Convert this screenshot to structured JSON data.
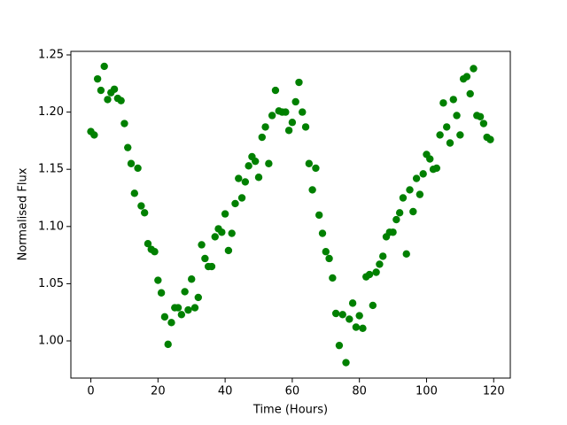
{
  "chart_data": {
    "type": "scatter",
    "xlabel": "Time (Hours)",
    "ylabel": "Normalised Flux",
    "color": "#008000",
    "x": [
      0,
      1,
      2,
      3,
      4,
      5,
      6,
      7,
      8,
      9,
      10,
      11,
      12,
      13,
      14,
      15,
      16,
      17,
      18,
      19,
      20,
      21,
      22,
      23,
      24,
      25,
      26,
      27,
      28,
      29,
      30,
      31,
      32,
      33,
      34,
      35,
      36,
      37,
      38,
      39,
      40,
      41,
      42,
      43,
      44,
      45,
      46,
      47,
      48,
      49,
      50,
      51,
      52,
      53,
      54,
      55,
      56,
      57,
      58,
      59,
      60,
      61,
      62,
      63,
      64,
      65,
      66,
      67,
      68,
      69,
      70,
      71,
      72,
      73,
      74,
      75,
      76,
      77,
      78,
      79,
      80,
      81,
      82,
      83,
      84,
      85,
      86,
      87,
      88,
      89,
      90,
      91,
      92,
      93,
      94,
      95,
      96,
      97,
      98,
      99,
      100,
      101,
      102,
      103,
      104,
      105,
      106,
      107,
      108,
      109,
      110,
      111,
      112,
      113,
      114,
      115,
      116,
      117,
      118,
      119
    ],
    "values": [
      1.183,
      1.18,
      1.229,
      1.219,
      1.24,
      1.211,
      1.217,
      1.22,
      1.212,
      1.21,
      1.19,
      1.169,
      1.155,
      1.129,
      1.151,
      1.118,
      1.112,
      1.085,
      1.08,
      1.078,
      1.053,
      1.042,
      1.021,
      0.997,
      1.016,
      1.029,
      1.029,
      1.023,
      1.043,
      1.027,
      1.054,
      1.029,
      1.038,
      1.084,
      1.072,
      1.065,
      1.065,
      1.091,
      1.098,
      1.095,
      1.111,
      1.079,
      1.094,
      1.12,
      1.142,
      1.125,
      1.139,
      1.153,
      1.161,
      1.157,
      1.143,
      1.178,
      1.187,
      1.155,
      1.197,
      1.219,
      1.201,
      1.2,
      1.2,
      1.184,
      1.191,
      1.209,
      1.226,
      1.2,
      1.187,
      1.155,
      1.132,
      1.151,
      1.11,
      1.094,
      1.078,
      1.072,
      1.055,
      1.024,
      0.996,
      1.023,
      0.981,
      1.019,
      1.033,
      1.012,
      1.022,
      1.011,
      1.056,
      1.058,
      1.031,
      1.06,
      1.067,
      1.074,
      1.091,
      1.095,
      1.095,
      1.106,
      1.112,
      1.125,
      1.076,
      1.132,
      1.113,
      1.142,
      1.128,
      1.146,
      1.163,
      1.159,
      1.15,
      1.151,
      1.18,
      1.208,
      1.187,
      1.173,
      1.211,
      1.197,
      1.18,
      1.229,
      1.231,
      1.216,
      1.238,
      1.197,
      1.196,
      1.19,
      1.178,
      1.176
    ],
    "xlim": [
      -5.95,
      124.95
    ],
    "ylim": [
      0.9675,
      1.2531
    ],
    "xticks": [
      0,
      20,
      40,
      60,
      80,
      100,
      120
    ],
    "yticks": [
      {
        "value": 1.0,
        "label": "1.00"
      },
      {
        "value": 1.05,
        "label": "1.05"
      },
      {
        "value": 1.1,
        "label": "1.10"
      },
      {
        "value": 1.15,
        "label": "1.15"
      },
      {
        "value": 1.2,
        "label": "1.20"
      },
      {
        "value": 1.25,
        "label": "1.25"
      }
    ]
  }
}
